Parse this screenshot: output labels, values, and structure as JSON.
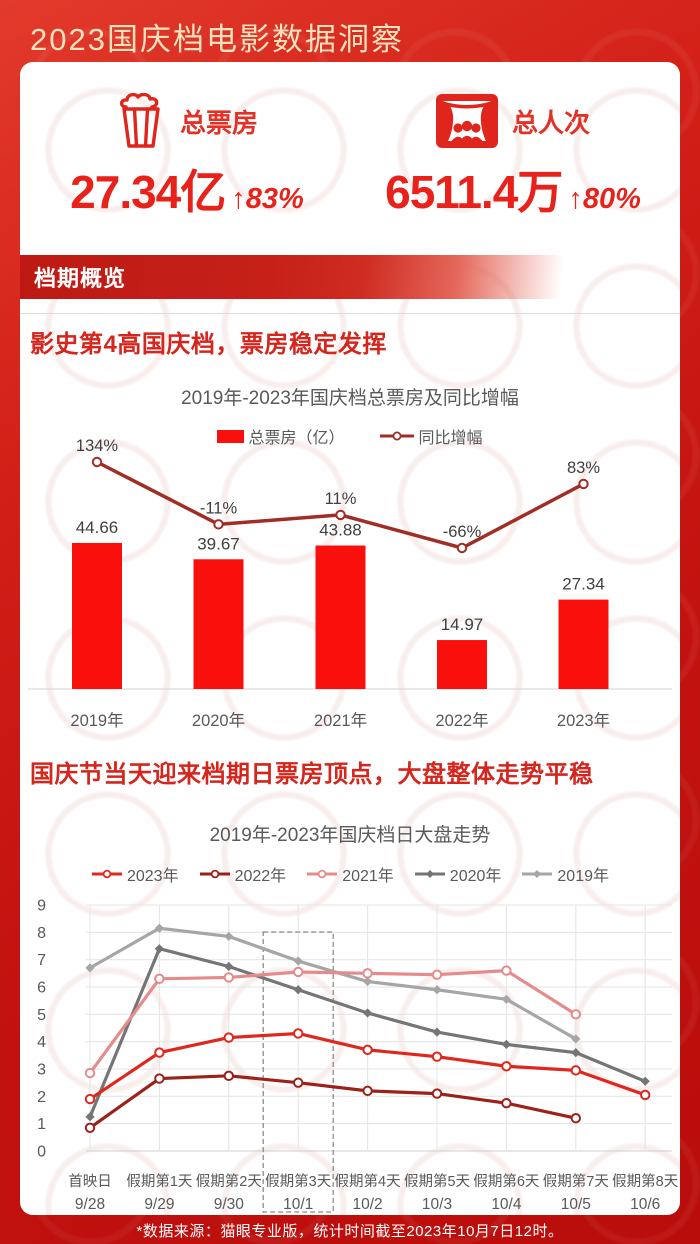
{
  "header": {
    "title": "2023国庆档电影数据洞察"
  },
  "stats": [
    {
      "icon": "popcorn-icon",
      "label": "总票房",
      "value": "27.34亿",
      "delta": "↑83%"
    },
    {
      "icon": "audience-icon",
      "label": "总人次",
      "value": "6511.4万",
      "delta": "↑80%"
    }
  ],
  "overview_badge": "档期概览",
  "sections": [
    {
      "heading": "影史第4高国庆档，票房稳定发挥"
    },
    {
      "heading": "国庆节当天迎来档期日票房顶点，大盘整体走势平稳"
    }
  ],
  "footer": {
    "note": "*数据来源：猫眼专业版，统计时间截至2023年10月7日12时。"
  },
  "colors": {
    "accent_red": "#e8211a",
    "bar_red": "#f90f0c",
    "dark_red_line": "#a02d26",
    "heading_red": "#d5251c",
    "axis_gray": "#595959",
    "label_gray": "#404040"
  },
  "chart_data": [
    {
      "type": "bar",
      "title": "2019年-2023年国庆档总票房及同比增幅",
      "categories": [
        "2019年",
        "2020年",
        "2021年",
        "2022年",
        "2023年"
      ],
      "series": [
        {
          "name": "总票房（亿）",
          "type": "bar",
          "color": "#f90f0c",
          "values": [
            44.66,
            39.67,
            43.88,
            14.97,
            27.34
          ]
        },
        {
          "name": "同比增幅",
          "type": "line",
          "color": "#a02d26",
          "marker": "open-circle",
          "values": [
            134,
            -11,
            11,
            -66,
            83
          ],
          "labels": [
            "134%",
            "-11%",
            "11%",
            "-66%",
            "83%"
          ]
        }
      ],
      "ylabel": "",
      "xlabel": "",
      "grid": false,
      "legend_position": "top",
      "value_labels": true
    },
    {
      "type": "line",
      "title": "2019年-2023年国庆档日大盘走势",
      "categories": [
        "首映日",
        "假期第1天",
        "假期第2天",
        "假期第3天",
        "假期第4天",
        "假期第5天",
        "假期第6天",
        "假期第7天",
        "假期第8天"
      ],
      "categories_dates": [
        "9/28",
        "9/29",
        "9/30",
        "10/1",
        "10/2",
        "10/3",
        "10/4",
        "10/5",
        "10/6"
      ],
      "series": [
        {
          "name": "2023年",
          "color": "#df271d",
          "marker": "open-circle",
          "values": [
            1.9,
            3.6,
            4.15,
            4.3,
            3.7,
            3.45,
            3.1,
            2.95,
            2.05
          ]
        },
        {
          "name": "2022年",
          "color": "#9c211b",
          "marker": "open-circle",
          "values": [
            0.85,
            2.65,
            2.75,
            2.5,
            2.2,
            2.1,
            1.75,
            1.2,
            null
          ]
        },
        {
          "name": "2021年",
          "color": "#e58b8b",
          "marker": "open-circle",
          "values": [
            2.85,
            6.3,
            6.35,
            6.55,
            6.5,
            6.45,
            6.6,
            5.0,
            null
          ]
        },
        {
          "name": "2020年",
          "color": "#757575",
          "marker": "diamond",
          "values": [
            1.25,
            7.4,
            6.75,
            5.9,
            5.05,
            4.35,
            3.9,
            3.6,
            2.55
          ]
        },
        {
          "name": "2019年",
          "color": "#a6a6a6",
          "marker": "diamond",
          "values": [
            6.7,
            8.15,
            7.85,
            6.95,
            6.2,
            5.9,
            5.55,
            4.1,
            null
          ]
        }
      ],
      "ylim": [
        0,
        9
      ],
      "yticks": [
        0,
        1,
        2,
        3,
        4,
        5,
        6,
        7,
        8,
        9
      ],
      "grid": true,
      "legend_position": "top",
      "highlight_column": {
        "index": 3,
        "style": "dashed-box"
      }
    }
  ]
}
